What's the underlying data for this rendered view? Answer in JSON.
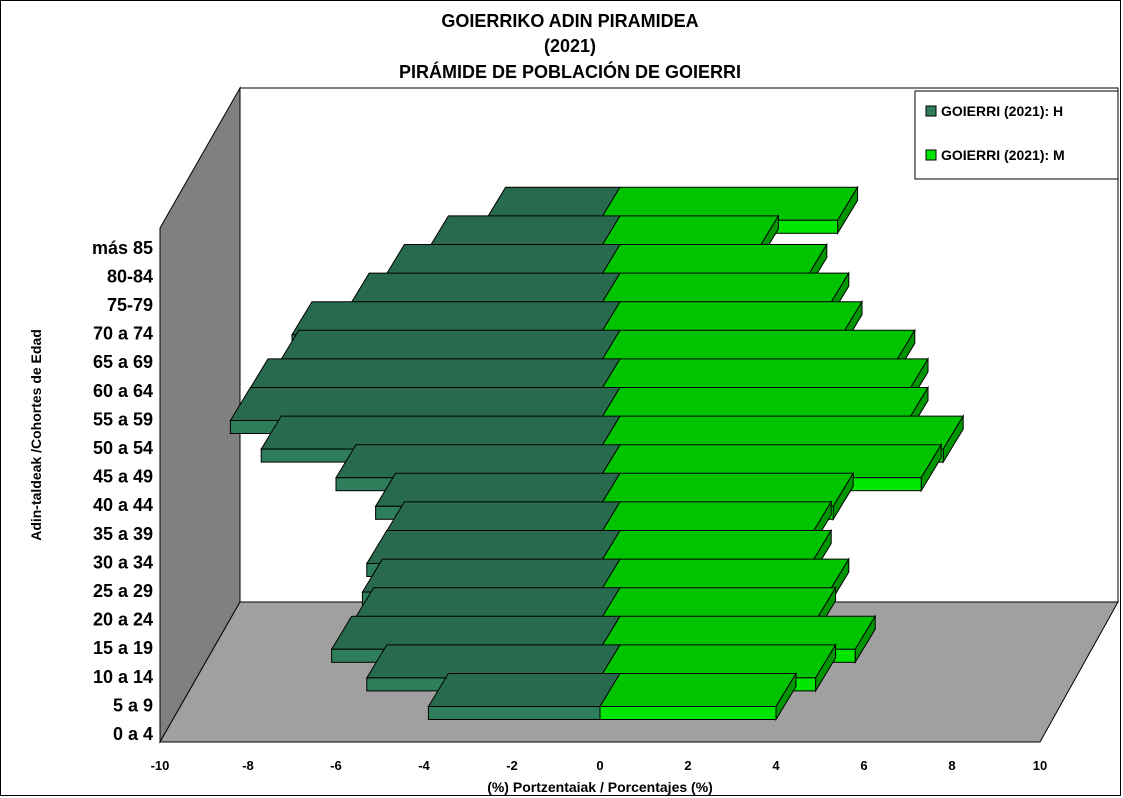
{
  "chart_data": {
    "type": "bar",
    "orientation": "horizontal",
    "style": "3d-population-pyramid",
    "title_lines": [
      "GOIERRIKO ADIN PIRAMIDEA",
      "(2021)",
      "PIRÁMIDE DE POBLACIÓN DE GOIERRI"
    ],
    "xlabel": "(%) Portzentaiak / Porcentajes (%)",
    "ylabel": "Adin-taldeak /Cohortes de Edad",
    "xlim": [
      -10,
      10
    ],
    "xticks": [
      "-10",
      "-8",
      "-6",
      "-4",
      "-2",
      "0",
      "2",
      "4",
      "6",
      "8",
      "10"
    ],
    "categories": [
      "0 a 4",
      "5 a 9",
      "10 a 14",
      "15 a 19",
      "20 a 24",
      "25 a 29",
      "30 a 34",
      "35 a 39",
      "40 a 44",
      "45 a 49",
      "50 a 54",
      "55 a 59",
      "60 a 64",
      "65 a 69",
      "70 a 74",
      "75-79",
      "80-84",
      "más 85"
    ],
    "series": [
      {
        "name": "GOIERRI (2021): H",
        "color": "#2e7d5b",
        "values": [
          -3.9,
          -5.3,
          -6.1,
          -5.6,
          -5.4,
          -5.3,
          -4.9,
          -5.1,
          -6.0,
          -7.7,
          -8.4,
          -8.0,
          -7.3,
          -7.0,
          -5.7,
          -4.9,
          -3.9,
          -2.6
        ]
      },
      {
        "name": "GOIERRI (2021): M",
        "color": "#00e600",
        "values": [
          4.0,
          4.9,
          5.8,
          4.9,
          5.2,
          4.8,
          4.8,
          5.3,
          7.3,
          7.8,
          7.0,
          7.0,
          6.7,
          5.5,
          5.2,
          4.7,
          3.6,
          5.4
        ]
      }
    ],
    "legend_position": "top-right",
    "grid": false
  }
}
